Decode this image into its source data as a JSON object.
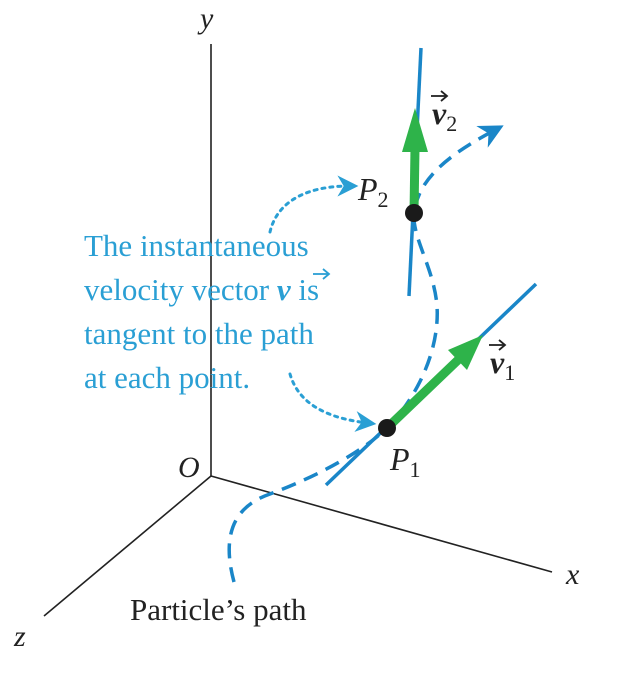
{
  "axes": {
    "y_label": "y",
    "x_label": "x",
    "z_label": "z",
    "origin_label": "O"
  },
  "points": {
    "p1": {
      "letter": "P",
      "subscript": "1"
    },
    "p2": {
      "letter": "P",
      "subscript": "2"
    }
  },
  "vectors": {
    "v1": {
      "letter": "v",
      "subscript": "1"
    },
    "v2": {
      "letter": "v",
      "subscript": "2"
    }
  },
  "annotation": {
    "lines": [
      "The instantaneous",
      "velocity vector",
      "tangent to the path",
      "at each point."
    ],
    "inline_vector_letter": "v",
    "inline_suffix": " is"
  },
  "path_caption": "Particle’s path",
  "colors": {
    "path_blue": "#1a86c8",
    "annotation_blue": "#2a9fd4",
    "vector_green": "#2eb34a",
    "point_black": "#1a1a1a",
    "axis_black": "#222222"
  }
}
